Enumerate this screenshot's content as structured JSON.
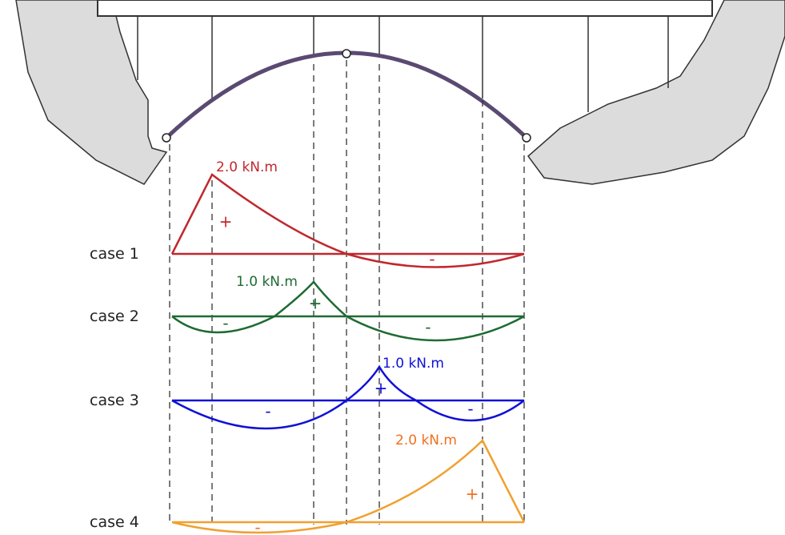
{
  "cases": [
    {
      "label": "case 1",
      "peak_label": "2.0 kN.m",
      "signs": [
        "+",
        "-"
      ]
    },
    {
      "label": "case 2",
      "peak_label": "1.0 kN.m",
      "signs": [
        "-",
        "+",
        "-"
      ]
    },
    {
      "label": "case 3",
      "peak_label": "1.0 kN.m",
      "signs": [
        "-",
        "+",
        "-"
      ]
    },
    {
      "label": "case 4",
      "peak_label": "2.0 kN.m",
      "signs": [
        "-",
        "+"
      ]
    }
  ]
}
